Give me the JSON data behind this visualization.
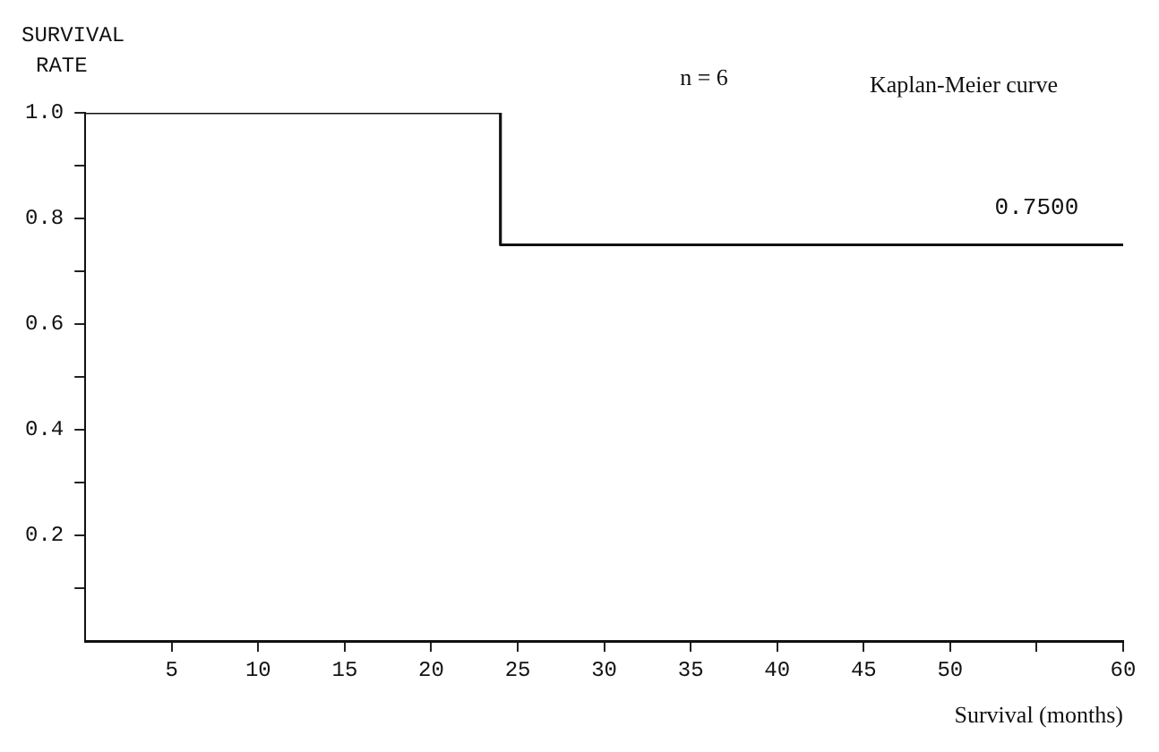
{
  "chart_data": {
    "type": "step",
    "xlabel": "Survival (months)",
    "ylabel": "SURVIVAL\nRATE",
    "x": [
      0,
      24,
      60
    ],
    "series": [
      {
        "color": "#111111",
        "values": [
          1,
          0.75,
          0.75
        ]
      }
    ],
    "xlim": [
      0,
      60
    ],
    "ylim": [
      0,
      1
    ],
    "xticks": [
      5,
      10,
      15,
      20,
      25,
      30,
      35,
      40,
      45,
      50,
      {
        "value": 55,
        "label": null
      },
      60
    ],
    "yticks": [
      {
        "value": 0.1,
        "label": null
      },
      0.2,
      {
        "value": 0.3,
        "label": null
      },
      0.4,
      {
        "value": 0.5,
        "label": null
      },
      0.6,
      {
        "value": 0.7,
        "label": null
      },
      0.8,
      {
        "value": 0.9,
        "label": null
      },
      {
        "value": 1,
        "label": "1.0"
      }
    ],
    "annotations": [
      "n = 6",
      "Kaplan-Meier curve",
      {
        "text": "0.7500",
        "x": 55,
        "y": 0.75
      }
    ],
    "grid": false,
    "legend": false,
    "marker": "none",
    "line_style": "solid"
  }
}
